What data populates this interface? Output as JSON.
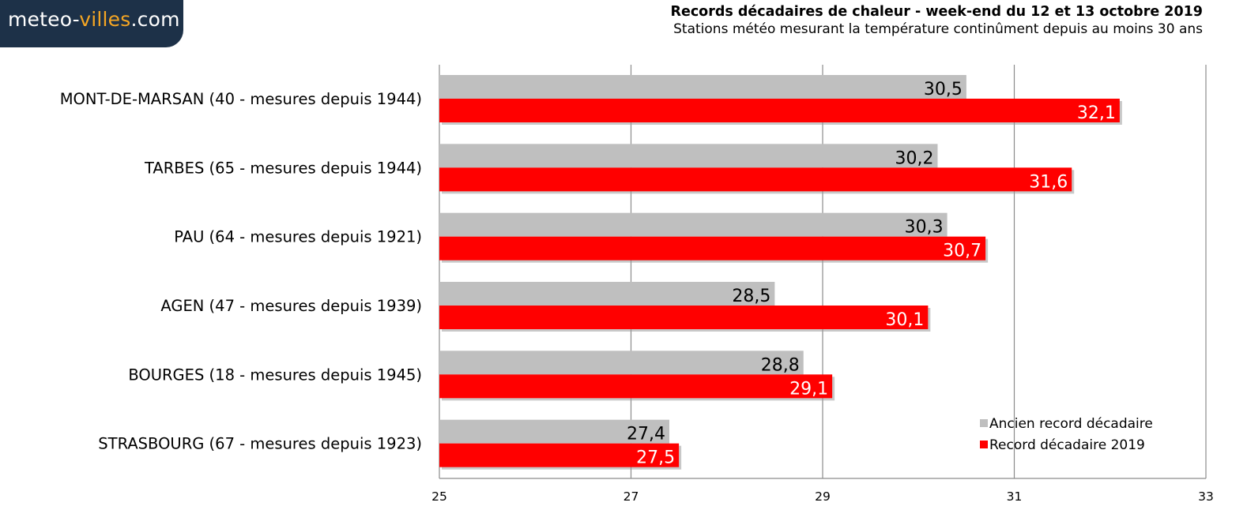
{
  "brand": {
    "prefix": "meteo-",
    "accent": "villes",
    "suffix": ".com"
  },
  "colors": {
    "old_record": "#bfbfbf",
    "new_record": "#ff0000",
    "brand_bg": "#1d3148",
    "brand_accent": "#f5a623"
  },
  "chart_data": {
    "type": "bar",
    "orientation": "horizontal",
    "title": "Records décadaires de chaleur - week-end du 12 et 13 octobre 2019",
    "subtitle": "Stations météo mesurant la température continûment depuis au moins 30 ans",
    "categories": [
      "MONT-DE-MARSAN (40 - mesures depuis 1944)",
      "TARBES (65 - mesures depuis 1944)",
      "PAU (64 - mesures depuis 1921)",
      "AGEN (47 - mesures depuis 1939)",
      "BOURGES (18 - mesures depuis 1945)",
      "STRASBOURG (67 - mesures depuis 1923)"
    ],
    "series": [
      {
        "name": "Ancien record décadaire",
        "color": "#bfbfbf",
        "values": [
          30.5,
          30.2,
          30.3,
          28.5,
          28.8,
          27.4
        ],
        "labels": [
          "30,5",
          "30,2",
          "30,3",
          "28,5",
          "28,8",
          "27,4"
        ]
      },
      {
        "name": "Record décadaire 2019",
        "color": "#ff0000",
        "values": [
          32.1,
          31.6,
          30.7,
          30.1,
          29.1,
          27.5
        ],
        "labels": [
          "32,1",
          "31,6",
          "30,7",
          "30,1",
          "29,1",
          "27,5"
        ]
      }
    ],
    "xlim": [
      25,
      33
    ],
    "xticks": [
      "25",
      "27",
      "29",
      "31",
      "33"
    ],
    "grid": true,
    "legend_position": "bottom-right"
  }
}
